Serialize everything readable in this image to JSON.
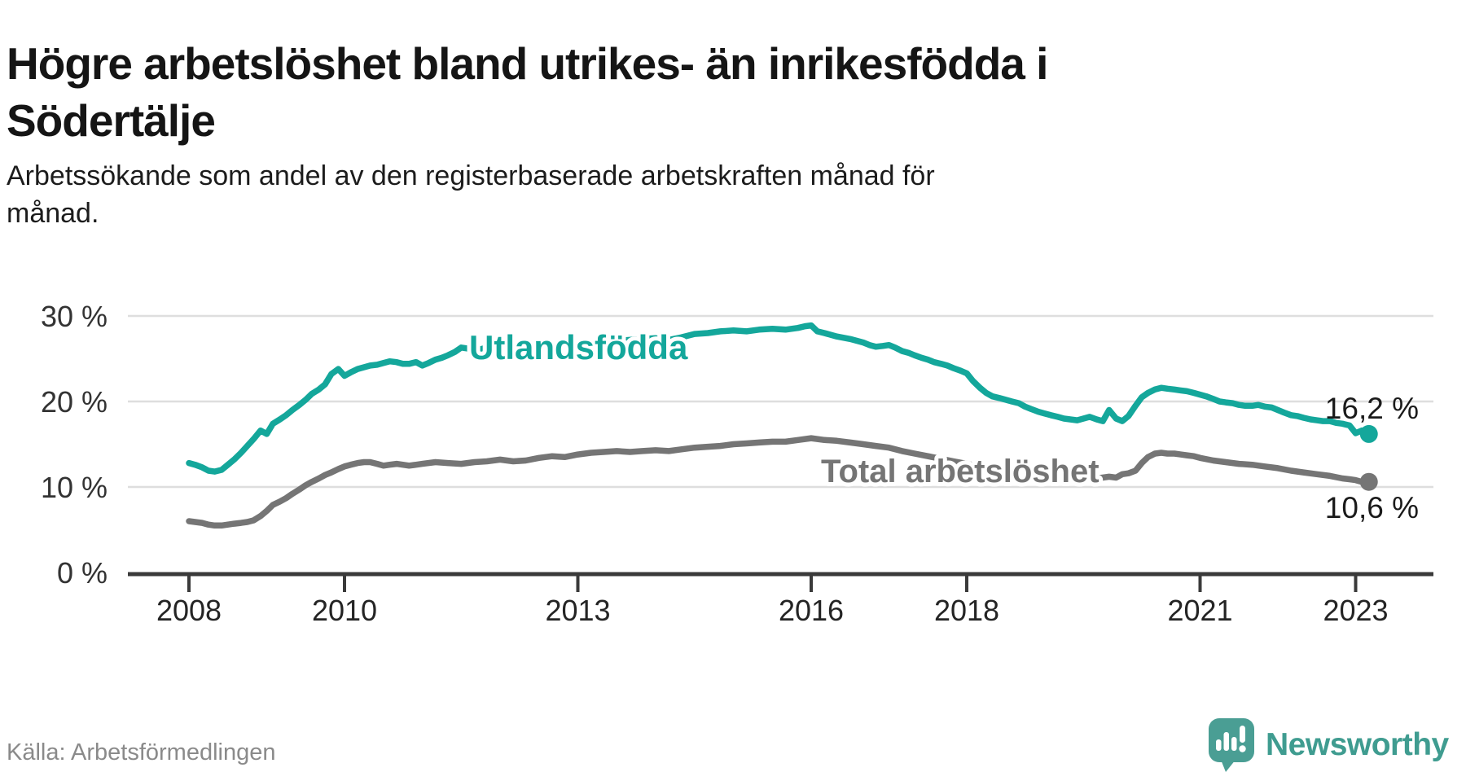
{
  "header": {
    "title_lines": [
      "Högre arbetslöshet bland utrikes- än inrikesfödda i",
      "Södertälje"
    ],
    "subtitle_lines": [
      "Arbetssökande som andel av den registerbaserade arbetskraften månad för",
      "månad."
    ]
  },
  "footer": {
    "source": "Källa: Arbetsförmedlingen",
    "brand": "Newsworthy"
  },
  "colors": {
    "background": "#ffffff",
    "title": "#151515",
    "grid": "#dedede",
    "axis": "#3a3a3a",
    "foreign": "#14a79b",
    "total": "#757575",
    "end_label": "#1a1a1a",
    "source_text": "#8a8a8a",
    "brand_teal": "#3f9c90",
    "brand_icon": "#4a9e94"
  },
  "chart_data": {
    "type": "line",
    "title": "Högre arbetslöshet bland utrikes- än inrikesfödda i Södertälje",
    "subtitle": "Arbetssökande som andel av den registerbaserade arbetskraften månad för månad.",
    "unit": "%",
    "grid": true,
    "legend_position": "inline-labels",
    "x_range": [
      2008,
      2023.25
    ],
    "ylim": [
      0,
      30
    ],
    "x_ticks": [
      {
        "year": 2008,
        "label": "2008"
      },
      {
        "year": 2010,
        "label": "2010"
      },
      {
        "year": 2013,
        "label": "2013"
      },
      {
        "year": 2016,
        "label": "2016"
      },
      {
        "year": 2018,
        "label": "2018"
      },
      {
        "year": 2021,
        "label": "2021"
      },
      {
        "year": 2023,
        "label": "2023"
      }
    ],
    "y_ticks": [
      {
        "value": 30,
        "label": "30 %"
      },
      {
        "value": 20,
        "label": "20 %"
      },
      {
        "value": 10,
        "label": "10 %"
      },
      {
        "value": 0,
        "label": "0 %"
      }
    ],
    "series": [
      {
        "name": "Utlandsfödda",
        "color_key": "foreign",
        "end_label": "16,2 %",
        "end_value": 16.2,
        "points": [
          [
            2008.0,
            12.8
          ],
          [
            2008.08,
            12.6
          ],
          [
            2008.17,
            12.3
          ],
          [
            2008.25,
            11.9
          ],
          [
            2008.33,
            11.8
          ],
          [
            2008.42,
            12.0
          ],
          [
            2008.5,
            12.6
          ],
          [
            2008.58,
            13.2
          ],
          [
            2008.67,
            14.0
          ],
          [
            2008.75,
            14.8
          ],
          [
            2008.83,
            15.6
          ],
          [
            2008.92,
            16.6
          ],
          [
            2009.0,
            16.2
          ],
          [
            2009.08,
            17.4
          ],
          [
            2009.17,
            17.9
          ],
          [
            2009.25,
            18.4
          ],
          [
            2009.33,
            19.0
          ],
          [
            2009.42,
            19.6
          ],
          [
            2009.5,
            20.2
          ],
          [
            2009.58,
            20.9
          ],
          [
            2009.67,
            21.4
          ],
          [
            2009.75,
            22.0
          ],
          [
            2009.83,
            23.2
          ],
          [
            2009.92,
            23.8
          ],
          [
            2010.0,
            23.0
          ],
          [
            2010.08,
            23.4
          ],
          [
            2010.17,
            23.8
          ],
          [
            2010.25,
            24.0
          ],
          [
            2010.33,
            24.2
          ],
          [
            2010.42,
            24.3
          ],
          [
            2010.5,
            24.5
          ],
          [
            2010.58,
            24.7
          ],
          [
            2010.67,
            24.6
          ],
          [
            2010.75,
            24.4
          ],
          [
            2010.83,
            24.4
          ],
          [
            2010.92,
            24.6
          ],
          [
            2011.0,
            24.2
          ],
          [
            2011.08,
            24.5
          ],
          [
            2011.17,
            24.9
          ],
          [
            2011.25,
            25.1
          ],
          [
            2011.33,
            25.4
          ],
          [
            2011.42,
            25.8
          ],
          [
            2011.5,
            26.3
          ],
          [
            2011.58,
            26.2
          ],
          [
            2011.67,
            26.0
          ],
          [
            2011.75,
            26.1
          ],
          [
            2011.83,
            26.3
          ],
          [
            2011.92,
            26.4
          ],
          [
            2012.0,
            26.2
          ],
          [
            2012.17,
            26.3
          ],
          [
            2012.33,
            26.5
          ],
          [
            2012.5,
            26.6
          ],
          [
            2012.67,
            26.4
          ],
          [
            2012.83,
            26.6
          ],
          [
            2013.0,
            26.8
          ],
          [
            2013.17,
            27.0
          ],
          [
            2013.33,
            27.2
          ],
          [
            2013.5,
            27.1
          ],
          [
            2013.67,
            27.2
          ],
          [
            2013.83,
            27.3
          ],
          [
            2014.0,
            27.4
          ],
          [
            2014.17,
            27.2
          ],
          [
            2014.33,
            27.5
          ],
          [
            2014.5,
            27.9
          ],
          [
            2014.67,
            28.0
          ],
          [
            2014.83,
            28.2
          ],
          [
            2015.0,
            28.3
          ],
          [
            2015.17,
            28.2
          ],
          [
            2015.33,
            28.4
          ],
          [
            2015.5,
            28.5
          ],
          [
            2015.67,
            28.4
          ],
          [
            2015.83,
            28.6
          ],
          [
            2015.92,
            28.8
          ],
          [
            2016.0,
            28.9
          ],
          [
            2016.08,
            28.2
          ],
          [
            2016.17,
            28.0
          ],
          [
            2016.25,
            27.8
          ],
          [
            2016.33,
            27.6
          ],
          [
            2016.5,
            27.3
          ],
          [
            2016.67,
            26.9
          ],
          [
            2016.75,
            26.6
          ],
          [
            2016.83,
            26.4
          ],
          [
            2016.92,
            26.5
          ],
          [
            2017.0,
            26.6
          ],
          [
            2017.08,
            26.3
          ],
          [
            2017.17,
            25.9
          ],
          [
            2017.25,
            25.7
          ],
          [
            2017.33,
            25.4
          ],
          [
            2017.42,
            25.1
          ],
          [
            2017.5,
            24.9
          ],
          [
            2017.58,
            24.6
          ],
          [
            2017.67,
            24.4
          ],
          [
            2017.75,
            24.2
          ],
          [
            2017.83,
            23.9
          ],
          [
            2017.92,
            23.6
          ],
          [
            2018.0,
            23.3
          ],
          [
            2018.08,
            22.4
          ],
          [
            2018.17,
            21.6
          ],
          [
            2018.25,
            21.0
          ],
          [
            2018.33,
            20.6
          ],
          [
            2018.42,
            20.4
          ],
          [
            2018.5,
            20.2
          ],
          [
            2018.58,
            20.0
          ],
          [
            2018.67,
            19.8
          ],
          [
            2018.75,
            19.4
          ],
          [
            2018.83,
            19.1
          ],
          [
            2018.92,
            18.8
          ],
          [
            2019.0,
            18.6
          ],
          [
            2019.08,
            18.4
          ],
          [
            2019.17,
            18.2
          ],
          [
            2019.25,
            18.0
          ],
          [
            2019.33,
            17.9
          ],
          [
            2019.42,
            17.8
          ],
          [
            2019.5,
            18.0
          ],
          [
            2019.58,
            18.2
          ],
          [
            2019.67,
            17.9
          ],
          [
            2019.75,
            17.7
          ],
          [
            2019.83,
            19.0
          ],
          [
            2019.92,
            18.0
          ],
          [
            2020.0,
            17.7
          ],
          [
            2020.08,
            18.3
          ],
          [
            2020.17,
            19.5
          ],
          [
            2020.25,
            20.5
          ],
          [
            2020.33,
            21.0
          ],
          [
            2020.42,
            21.4
          ],
          [
            2020.5,
            21.6
          ],
          [
            2020.58,
            21.5
          ],
          [
            2020.67,
            21.4
          ],
          [
            2020.75,
            21.3
          ],
          [
            2020.83,
            21.2
          ],
          [
            2020.92,
            21.0
          ],
          [
            2021.0,
            20.8
          ],
          [
            2021.08,
            20.6
          ],
          [
            2021.17,
            20.3
          ],
          [
            2021.25,
            20.0
          ],
          [
            2021.33,
            19.9
          ],
          [
            2021.42,
            19.8
          ],
          [
            2021.5,
            19.6
          ],
          [
            2021.58,
            19.5
          ],
          [
            2021.67,
            19.5
          ],
          [
            2021.75,
            19.6
          ],
          [
            2021.83,
            19.4
          ],
          [
            2021.92,
            19.3
          ],
          [
            2022.0,
            19.0
          ],
          [
            2022.08,
            18.7
          ],
          [
            2022.17,
            18.4
          ],
          [
            2022.25,
            18.3
          ],
          [
            2022.33,
            18.1
          ],
          [
            2022.42,
            17.9
          ],
          [
            2022.5,
            17.8
          ],
          [
            2022.58,
            17.7
          ],
          [
            2022.67,
            17.7
          ],
          [
            2022.75,
            17.5
          ],
          [
            2022.83,
            17.4
          ],
          [
            2022.92,
            17.2
          ],
          [
            2023.0,
            16.3
          ],
          [
            2023.08,
            16.6
          ],
          [
            2023.17,
            16.2
          ]
        ]
      },
      {
        "name": "Total arbetslöshet",
        "color_key": "total",
        "end_label": "10,6 %",
        "end_value": 10.6,
        "points": [
          [
            2008.0,
            6.0
          ],
          [
            2008.08,
            5.9
          ],
          [
            2008.17,
            5.8
          ],
          [
            2008.25,
            5.6
          ],
          [
            2008.33,
            5.5
          ],
          [
            2008.42,
            5.5
          ],
          [
            2008.5,
            5.6
          ],
          [
            2008.58,
            5.7
          ],
          [
            2008.67,
            5.8
          ],
          [
            2008.75,
            5.9
          ],
          [
            2008.83,
            6.1
          ],
          [
            2008.92,
            6.6
          ],
          [
            2009.0,
            7.2
          ],
          [
            2009.08,
            7.9
          ],
          [
            2009.17,
            8.3
          ],
          [
            2009.25,
            8.7
          ],
          [
            2009.33,
            9.2
          ],
          [
            2009.42,
            9.7
          ],
          [
            2009.5,
            10.2
          ],
          [
            2009.58,
            10.6
          ],
          [
            2009.67,
            11.0
          ],
          [
            2009.75,
            11.4
          ],
          [
            2009.83,
            11.7
          ],
          [
            2009.92,
            12.1
          ],
          [
            2010.0,
            12.4
          ],
          [
            2010.08,
            12.6
          ],
          [
            2010.17,
            12.8
          ],
          [
            2010.25,
            12.9
          ],
          [
            2010.33,
            12.9
          ],
          [
            2010.42,
            12.7
          ],
          [
            2010.5,
            12.5
          ],
          [
            2010.58,
            12.6
          ],
          [
            2010.67,
            12.7
          ],
          [
            2010.75,
            12.6
          ],
          [
            2010.83,
            12.5
          ],
          [
            2010.92,
            12.6
          ],
          [
            2011.0,
            12.7
          ],
          [
            2011.17,
            12.9
          ],
          [
            2011.33,
            12.8
          ],
          [
            2011.5,
            12.7
          ],
          [
            2011.67,
            12.9
          ],
          [
            2011.83,
            13.0
          ],
          [
            2012.0,
            13.2
          ],
          [
            2012.17,
            13.0
          ],
          [
            2012.33,
            13.1
          ],
          [
            2012.5,
            13.4
          ],
          [
            2012.67,
            13.6
          ],
          [
            2012.83,
            13.5
          ],
          [
            2013.0,
            13.8
          ],
          [
            2013.17,
            14.0
          ],
          [
            2013.33,
            14.1
          ],
          [
            2013.5,
            14.2
          ],
          [
            2013.67,
            14.1
          ],
          [
            2013.83,
            14.2
          ],
          [
            2014.0,
            14.3
          ],
          [
            2014.17,
            14.2
          ],
          [
            2014.33,
            14.4
          ],
          [
            2014.5,
            14.6
          ],
          [
            2014.67,
            14.7
          ],
          [
            2014.83,
            14.8
          ],
          [
            2015.0,
            15.0
          ],
          [
            2015.17,
            15.1
          ],
          [
            2015.33,
            15.2
          ],
          [
            2015.5,
            15.3
          ],
          [
            2015.67,
            15.3
          ],
          [
            2015.83,
            15.5
          ],
          [
            2016.0,
            15.7
          ],
          [
            2016.17,
            15.5
          ],
          [
            2016.33,
            15.4
          ],
          [
            2016.5,
            15.2
          ],
          [
            2016.67,
            15.0
          ],
          [
            2016.83,
            14.8
          ],
          [
            2017.0,
            14.6
          ],
          [
            2017.17,
            14.2
          ],
          [
            2017.33,
            13.9
          ],
          [
            2017.5,
            13.6
          ],
          [
            2017.67,
            13.3
          ],
          [
            2017.83,
            13.0
          ],
          [
            2018.0,
            12.7
          ],
          [
            2018.17,
            12.4
          ],
          [
            2018.33,
            12.2
          ],
          [
            2018.5,
            12.0
          ],
          [
            2018.67,
            11.8
          ],
          [
            2018.83,
            11.6
          ],
          [
            2019.0,
            11.3
          ],
          [
            2019.17,
            11.1
          ],
          [
            2019.33,
            11.0
          ],
          [
            2019.5,
            11.1
          ],
          [
            2019.67,
            11.0
          ],
          [
            2019.83,
            11.2
          ],
          [
            2019.92,
            11.1
          ],
          [
            2020.0,
            11.5
          ],
          [
            2020.08,
            11.6
          ],
          [
            2020.17,
            11.9
          ],
          [
            2020.25,
            12.8
          ],
          [
            2020.33,
            13.5
          ],
          [
            2020.42,
            13.9
          ],
          [
            2020.5,
            14.0
          ],
          [
            2020.58,
            13.9
          ],
          [
            2020.67,
            13.9
          ],
          [
            2020.75,
            13.8
          ],
          [
            2020.83,
            13.7
          ],
          [
            2020.92,
            13.6
          ],
          [
            2021.0,
            13.4
          ],
          [
            2021.17,
            13.1
          ],
          [
            2021.33,
            12.9
          ],
          [
            2021.5,
            12.7
          ],
          [
            2021.67,
            12.6
          ],
          [
            2021.83,
            12.4
          ],
          [
            2022.0,
            12.2
          ],
          [
            2022.17,
            11.9
          ],
          [
            2022.33,
            11.7
          ],
          [
            2022.5,
            11.5
          ],
          [
            2022.67,
            11.3
          ],
          [
            2022.83,
            11.0
          ],
          [
            2022.92,
            10.9
          ],
          [
            2023.0,
            10.8
          ],
          [
            2023.08,
            10.6
          ],
          [
            2023.17,
            10.6
          ]
        ]
      }
    ]
  }
}
